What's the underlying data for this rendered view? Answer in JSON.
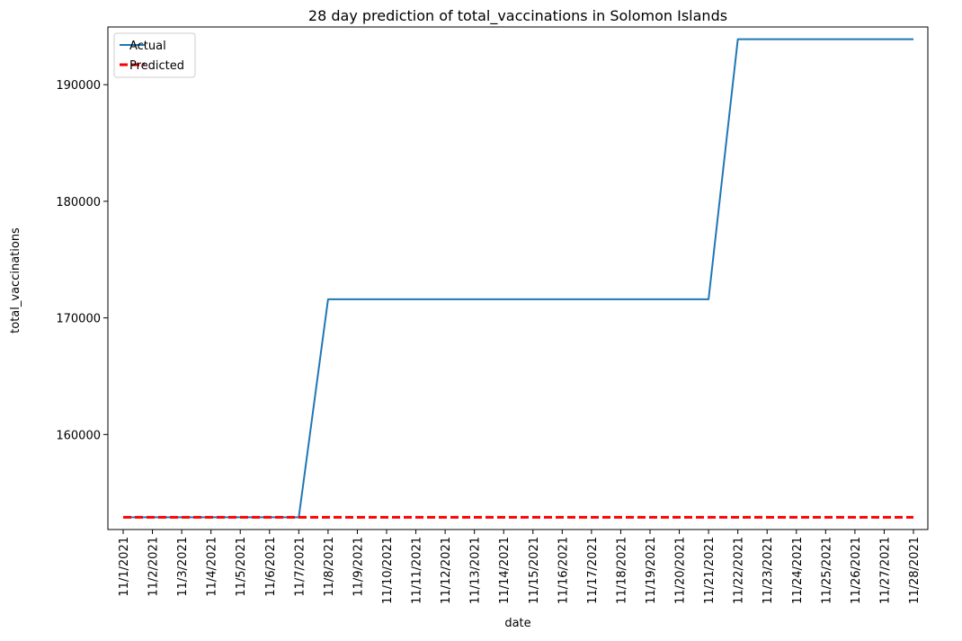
{
  "chart_data": {
    "type": "line",
    "title": "28 day prediction of total_vaccinations in Solomon Islands",
    "xlabel": "date",
    "ylabel": "total_vaccinations",
    "categories": [
      "11/1/2021",
      "11/2/2021",
      "11/3/2021",
      "11/4/2021",
      "11/5/2021",
      "11/6/2021",
      "11/7/2021",
      "11/8/2021",
      "11/9/2021",
      "11/10/2021",
      "11/11/2021",
      "11/12/2021",
      "11/13/2021",
      "11/14/2021",
      "11/15/2021",
      "11/16/2021",
      "11/17/2021",
      "11/18/2021",
      "11/19/2021",
      "11/20/2021",
      "11/21/2021",
      "11/22/2021",
      "11/23/2021",
      "11/24/2021",
      "11/25/2021",
      "11/26/2021",
      "11/27/2021",
      "11/28/2021"
    ],
    "series": [
      {
        "name": "Actual",
        "color": "#1f77b4",
        "style": "solid",
        "values": [
          152900,
          152900,
          152900,
          152900,
          152900,
          152900,
          152900,
          171600,
          171600,
          171600,
          171600,
          171600,
          171600,
          171600,
          171600,
          171600,
          171600,
          171600,
          171600,
          171600,
          171600,
          193900,
          193900,
          193900,
          193900,
          193900,
          193900,
          193900
        ]
      },
      {
        "name": "Predicted",
        "color": "#ff0000",
        "style": "dashed",
        "values": [
          152900,
          152900,
          152900,
          152900,
          152900,
          152900,
          152900,
          152900,
          152900,
          152900,
          152900,
          152900,
          152900,
          152900,
          152900,
          152900,
          152900,
          152900,
          152900,
          152900,
          152900,
          152900,
          152900,
          152900,
          152900,
          152900,
          152900,
          152900
        ]
      }
    ],
    "yticks": [
      160000,
      170000,
      180000,
      190000
    ],
    "ylim": [
      151850,
      194950
    ],
    "grid": false,
    "legend_position": "top-left"
  }
}
